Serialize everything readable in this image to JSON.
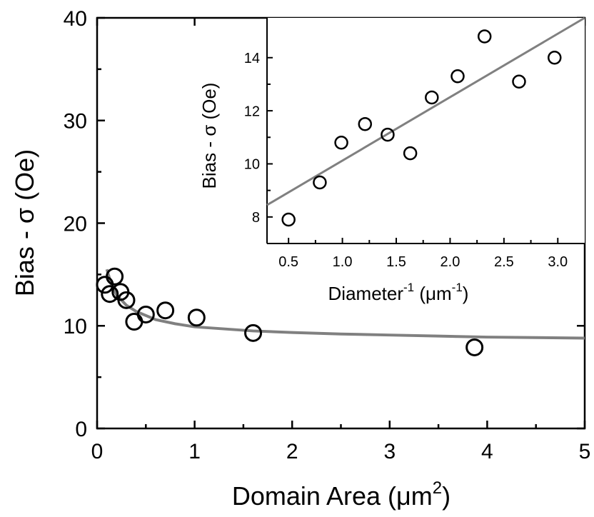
{
  "chart_data": [
    {
      "type": "scatter",
      "role": "main",
      "xlabel": "Domain Area (μm²)",
      "xlabel_parts": {
        "main": "Domain Area (",
        "unit": "μm",
        "sup": "2",
        "end": ")"
      },
      "ylabel": "Bias - σ (Oe)",
      "xlim": [
        0,
        5
      ],
      "ylim": [
        0,
        40
      ],
      "x_ticks": [
        0,
        1,
        2,
        3,
        4,
        5
      ],
      "x_tick_labels": [
        "0",
        "1",
        "2",
        "3",
        "4",
        "5"
      ],
      "y_ticks": [
        0,
        10,
        20,
        30,
        40
      ],
      "y_tick_labels": [
        "0",
        "10",
        "20",
        "30",
        "40"
      ],
      "grid": false,
      "series": [
        {
          "kind": "points",
          "x": [
            0.08,
            0.13,
            0.18,
            0.24,
            0.3,
            0.38,
            0.5,
            0.7,
            1.02,
            1.6,
            3.87
          ],
          "y": [
            14.0,
            13.1,
            14.8,
            13.3,
            12.5,
            10.4,
            11.1,
            11.5,
            10.8,
            9.3,
            7.9
          ]
        },
        {
          "kind": "fit-curve",
          "x": [
            0.1,
            0.15,
            0.2,
            0.3,
            0.4,
            0.6,
            0.8,
            1.0,
            1.3,
            1.6,
            2.0,
            2.5,
            3.0,
            3.5,
            4.0,
            4.5,
            5.0
          ],
          "y": [
            15.5,
            13.9,
            13.0,
            12.0,
            11.4,
            10.6,
            10.2,
            9.9,
            9.7,
            9.5,
            9.35,
            9.2,
            9.1,
            9.0,
            8.9,
            8.85,
            8.8
          ]
        }
      ],
      "colors": {
        "points": "#000000",
        "fit": "#808080"
      }
    },
    {
      "type": "scatter",
      "role": "inset",
      "xlabel": "Diameter⁻¹ (μm⁻¹)",
      "xlabel_parts": {
        "main": "Diameter",
        "sup": "-1",
        "unit": " (μm",
        "unit_sup": "-1",
        "end": ")"
      },
      "ylabel": "Bias - σ (Oe)",
      "xlim": [
        0.3,
        3.25
      ],
      "ylim": [
        7,
        15.5
      ],
      "x_ticks": [
        0.5,
        1.0,
        1.5,
        2.0,
        2.5,
        3.0
      ],
      "x_tick_labels": [
        "0.5",
        "1.0",
        "1.5",
        "2.0",
        "2.5",
        "3.0"
      ],
      "y_ticks": [
        8,
        10,
        12,
        14
      ],
      "y_tick_labels": [
        "8",
        "10",
        "12",
        "14"
      ],
      "grid": false,
      "series": [
        {
          "kind": "points",
          "x": [
            0.5,
            0.79,
            0.99,
            1.21,
            1.42,
            1.63,
            1.83,
            2.07,
            2.32,
            2.64,
            2.97
          ],
          "y": [
            7.9,
            9.3,
            10.8,
            11.5,
            11.1,
            10.4,
            12.5,
            13.3,
            14.8,
            13.1,
            14.0
          ]
        },
        {
          "kind": "fit-line",
          "x": [
            0.3,
            3.25
          ],
          "y": [
            8.45,
            15.5
          ]
        }
      ],
      "colors": {
        "points": "#000000",
        "fit": "#808080"
      }
    }
  ]
}
